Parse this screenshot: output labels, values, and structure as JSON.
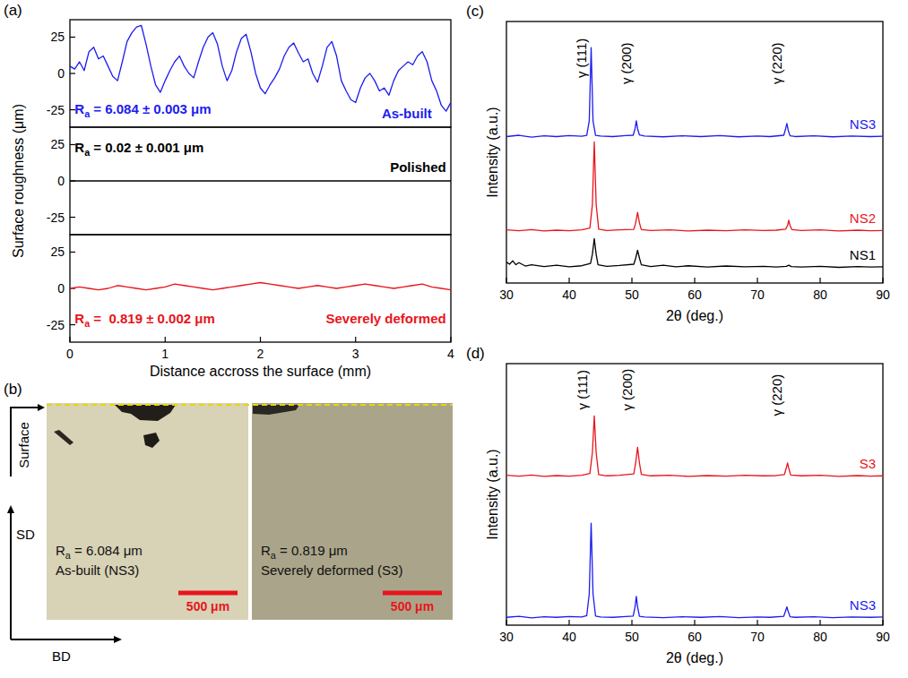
{
  "chart_data": [
    {
      "type": "line",
      "panel": "(a)",
      "xlim": [
        0,
        4
      ],
      "ylim": [
        -37,
        37
      ],
      "yticks": [
        -25,
        0,
        25
      ],
      "tick_labels": "y",
      "series": [
        {
          "color": "#1c1cf0",
          "x": [
            0,
            0.05,
            0.1,
            0.15,
            0.2,
            0.25,
            0.3,
            0.35,
            0.4,
            0.45,
            0.5,
            0.55,
            0.6,
            0.65,
            0.7,
            0.75,
            0.8,
            0.85,
            0.9,
            0.95,
            1,
            1.05,
            1.1,
            1.15,
            1.2,
            1.25,
            1.3,
            1.35,
            1.4,
            1.45,
            1.5,
            1.55,
            1.6,
            1.65,
            1.7,
            1.75,
            1.8,
            1.85,
            1.9,
            1.95,
            2,
            2.05,
            2.1,
            2.15,
            2.2,
            2.25,
            2.3,
            2.35,
            2.4,
            2.45,
            2.5,
            2.55,
            2.6,
            2.65,
            2.7,
            2.75,
            2.8,
            2.85,
            2.9,
            2.95,
            3,
            3.05,
            3.1,
            3.15,
            3.2,
            3.25,
            3.3,
            3.35,
            3.4,
            3.45,
            3.5,
            3.55,
            3.6,
            3.65,
            3.7,
            3.75,
            3.8,
            3.85,
            3.9,
            3.95,
            4
          ],
          "values": [
            5,
            3,
            8,
            2,
            15,
            18,
            10,
            12,
            5,
            -2,
            -5,
            8,
            22,
            28,
            32,
            33,
            20,
            5,
            -8,
            -13,
            -5,
            2,
            8,
            12,
            5,
            0,
            -3,
            8,
            18,
            25,
            28,
            20,
            5,
            -5,
            2,
            15,
            24,
            27,
            15,
            0,
            -10,
            -14,
            -8,
            -3,
            3,
            12,
            18,
            21,
            14,
            8,
            10,
            0,
            -6,
            5,
            18,
            22,
            12,
            -5,
            -12,
            -18,
            -20,
            -10,
            -3,
            0,
            -5,
            -12,
            -10,
            -15,
            -5,
            2,
            5,
            8,
            6,
            12,
            15,
            8,
            -5,
            -12,
            -22,
            -26,
            -20
          ]
        }
      ],
      "annotations": [
        {
          "text": "Ra = 6.084 ± 0.003 μm",
          "x": 0.05,
          "y": -28,
          "color": "#1c1cf0"
        },
        {
          "text": "As-built",
          "x": 3.8,
          "y": -31,
          "color": "#1c1cf0"
        }
      ]
    },
    {
      "type": "line",
      "xlim": [
        0,
        4
      ],
      "ylim": [
        -37,
        37
      ],
      "yticks": [
        -25,
        0,
        25
      ],
      "tick_labels": "y",
      "y_label": "Surface roughness (μm)",
      "series": [
        {
          "color": "#000000",
          "x": [
            0,
            1,
            2,
            3,
            4
          ],
          "values": [
            0,
            0,
            0,
            0,
            0
          ]
        }
      ],
      "annotations": [
        {
          "text": "Ra = 0.02 ± 0.001 μm",
          "x": 0.05,
          "y": 20,
          "color": "#000000"
        },
        {
          "text": "Polished",
          "x": 3.95,
          "y": 6,
          "color": "#000000"
        }
      ]
    },
    {
      "type": "line",
      "xlim": [
        0,
        4
      ],
      "ylim": [
        -37,
        37
      ],
      "xticks": [
        0,
        1,
        2,
        3,
        4
      ],
      "yticks": [
        -25,
        0,
        25
      ],
      "tick_labels": true,
      "x_label": "Distance accross the surface (mm)",
      "series": [
        {
          "color": "#e8141c",
          "x": [
            0,
            0.1,
            0.2,
            0.3,
            0.4,
            0.5,
            0.6,
            0.7,
            0.8,
            0.9,
            1,
            1.1,
            1.2,
            1.3,
            1.4,
            1.5,
            1.6,
            1.7,
            1.8,
            1.9,
            2,
            2.1,
            2.2,
            2.3,
            2.4,
            2.5,
            2.6,
            2.7,
            2.8,
            2.9,
            3,
            3.1,
            3.2,
            3.3,
            3.4,
            3.5,
            3.6,
            3.7,
            3.8,
            3.9,
            4
          ],
          "values": [
            0,
            1,
            0,
            -1,
            0,
            2,
            1,
            0,
            -1,
            0,
            1,
            3,
            2,
            1,
            0,
            -1,
            0,
            1,
            2,
            3,
            4,
            3,
            2,
            1,
            0,
            1,
            2,
            1,
            0,
            1,
            2,
            3,
            2,
            1,
            0,
            1,
            2,
            3,
            1,
            0,
            -1
          ]
        }
      ],
      "annotations": [
        {
          "text": "Ra =  0.819 ± 0.002 μm",
          "x": 0.05,
          "y": -24,
          "color": "#e8141c"
        },
        {
          "text": "Severely deformed",
          "x": 3.95,
          "y": -24,
          "color": "#e8141c"
        }
      ]
    },
    {
      "type": "image",
      "panel": "(b)",
      "surface_label": "Surface",
      "axes": [
        "SD",
        "BD"
      ],
      "images": [
        {
          "ra": "Ra = 6.084 μm",
          "label": "As-built (NS3)",
          "scale_bar": "500 μm"
        },
        {
          "ra": "Ra = 0.819 μm",
          "label": "Severely deformed (S3)",
          "scale_bar": "500 μm"
        }
      ]
    },
    {
      "type": "line",
      "panel": "(c)",
      "x_label": "2θ (deg.)",
      "y_label": "Intensity (a.u.)",
      "xlim": [
        30,
        90
      ],
      "xticks": [
        30,
        40,
        50,
        60,
        70,
        80,
        90
      ],
      "ylim": [
        0,
        100
      ],
      "tick_labels": "x",
      "series": [
        {
          "name": "NS3",
          "color": "#1c1cf0",
          "x": [
            30,
            32,
            34,
            36,
            38,
            40,
            42,
            42.8,
            43.2,
            43.5,
            43.8,
            44.2,
            45,
            47,
            49,
            50.2,
            50.5,
            50.7,
            50.9,
            51.2,
            52,
            55,
            58,
            61,
            64,
            67,
            70,
            72,
            74.2,
            74.5,
            74.7,
            74.9,
            75.2,
            76,
            79,
            82,
            85,
            88,
            90
          ],
          "values": [
            56,
            56.5,
            55.8,
            56.3,
            56,
            56.4,
            56.1,
            56.5,
            62,
            90,
            62,
            56.5,
            56.2,
            56,
            56.4,
            56.5,
            59,
            62,
            59,
            56.6,
            56.2,
            55.9,
            56.3,
            56,
            56.4,
            55.9,
            56.2,
            56,
            56.5,
            59,
            61,
            58.5,
            56.3,
            56,
            56.3,
            55.9,
            56.2,
            56,
            56.1
          ]
        },
        {
          "name": "NS2",
          "color": "#e8141c",
          "x": [
            30,
            32,
            34,
            36,
            38,
            40,
            42,
            43.3,
            43.7,
            44.0,
            44.3,
            44.7,
            46,
            48,
            50.3,
            50.6,
            50.9,
            51.2,
            51.5,
            53,
            56,
            59,
            62,
            65,
            68,
            71,
            73,
            74.5,
            74.8,
            75.0,
            75.2,
            75.5,
            77,
            80,
            83,
            86,
            88,
            90
          ],
          "values": [
            20.3,
            20,
            20.4,
            19.9,
            20.2,
            20,
            20.3,
            21,
            30,
            54,
            30,
            20.6,
            20.1,
            20.3,
            20.5,
            23,
            27,
            23,
            20.4,
            20.1,
            20.3,
            19.9,
            20.2,
            20,
            20.3,
            20.1,
            20.2,
            20.6,
            22,
            24,
            22,
            20.4,
            20.1,
            20.3,
            19.9,
            20.2,
            20,
            20.1
          ]
        },
        {
          "name": "NS1",
          "color": "#000000",
          "x": [
            30,
            30.5,
            31,
            31.5,
            32,
            33,
            34,
            36,
            38,
            40,
            42,
            43.4,
            43.7,
            44.0,
            44.3,
            44.6,
            46,
            48,
            50.3,
            50.6,
            50.9,
            51.2,
            51.5,
            53,
            55,
            57,
            59,
            62,
            65,
            68,
            71,
            73,
            74.6,
            75.0,
            75.4,
            77,
            80,
            83,
            86,
            88,
            90
          ],
          "values": [
            8,
            7.2,
            8.5,
            7,
            7.8,
            6.5,
            7,
            6.3,
            6.8,
            6.2,
            6.6,
            7.5,
            11,
            17,
            11,
            7,
            6.4,
            6.7,
            7.2,
            9.5,
            12.5,
            9.5,
            7,
            6.3,
            6.8,
            6.2,
            6.6,
            6.1,
            6.5,
            6.2,
            6.4,
            6.1,
            6.4,
            6.8,
            6.3,
            6.1,
            6.4,
            6,
            6.3,
            6.1,
            6.2
          ]
        }
      ],
      "annotations": [
        {
          "text": "γ (111)",
          "x": 42.7,
          "y": 86,
          "color": "#000000"
        },
        {
          "text": "γ (200)",
          "x": 49.9,
          "y": 84,
          "color": "#000000"
        },
        {
          "text": "γ (220)",
          "x": 73.9,
          "y": 84,
          "color": "#000000"
        }
      ]
    },
    {
      "type": "line",
      "panel": "(d)",
      "x_label": "2θ (deg.)",
      "y_label": "Intensity (a.u.)",
      "xlim": [
        30,
        90
      ],
      "xticks": [
        30,
        40,
        50,
        60,
        70,
        80,
        90
      ],
      "ylim": [
        0,
        100
      ],
      "tick_labels": "x",
      "series": [
        {
          "name": "S3",
          "color": "#e8141c",
          "x": [
            30,
            32,
            34,
            36,
            38,
            40,
            42,
            43.3,
            43.7,
            44.0,
            44.3,
            44.7,
            46,
            48,
            50.3,
            50.6,
            50.9,
            51.2,
            51.5,
            53,
            56,
            59,
            62,
            65,
            68,
            71,
            73,
            74.3,
            74.6,
            74.8,
            75.0,
            75.3,
            77,
            80,
            83,
            86,
            88,
            90
          ],
          "values": [
            57.3,
            57,
            57.4,
            56.9,
            57.2,
            57,
            57.3,
            58,
            66,
            80,
            66,
            57.6,
            57.1,
            57.3,
            57.8,
            62,
            68,
            62,
            57.7,
            57.1,
            57.3,
            56.9,
            57.2,
            57,
            57.3,
            57.1,
            57.2,
            57.6,
            60,
            62,
            60,
            57.4,
            57.1,
            57.3,
            56.9,
            57.2,
            57,
            57.1
          ]
        },
        {
          "name": "NS3",
          "color": "#1c1cf0",
          "x": [
            30,
            32,
            34,
            36,
            38,
            40,
            42,
            42.8,
            43.2,
            43.5,
            43.8,
            44.2,
            45,
            47,
            49,
            50.2,
            50.5,
            50.7,
            50.9,
            51.2,
            52,
            55,
            58,
            61,
            64,
            67,
            70,
            72,
            74.2,
            74.5,
            74.7,
            74.9,
            75.2,
            76,
            79,
            82,
            85,
            88,
            90
          ],
          "values": [
            3,
            3.4,
            2.8,
            3.2,
            3,
            3.3,
            3.1,
            3.6,
            12,
            39,
            12,
            3.5,
            3.1,
            3,
            3.3,
            3.5,
            7,
            11,
            7,
            3.4,
            3.1,
            2.9,
            3.2,
            3,
            3.3,
            2.9,
            3.1,
            3,
            3.4,
            5.5,
            7,
            5.3,
            3.2,
            3,
            3.2,
            2.9,
            3.1,
            3,
            3.1
          ]
        }
      ],
      "annotations": [
        {
          "text": "γ (111)",
          "x": 42.9,
          "y": 90,
          "color": "#000000"
        },
        {
          "text": "γ (200)",
          "x": 50.0,
          "y": 90,
          "color": "#000000"
        },
        {
          "text": "γ (220)",
          "x": 73.9,
          "y": 88,
          "color": "#000000"
        }
      ]
    }
  ]
}
